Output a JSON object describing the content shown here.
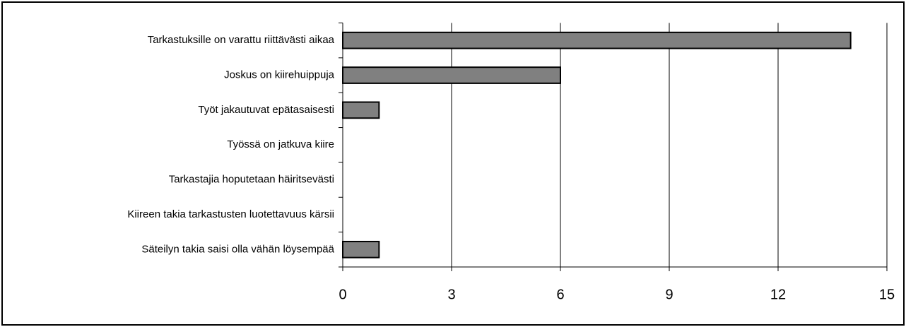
{
  "chart_data": {
    "type": "bar",
    "orientation": "horizontal",
    "categories": [
      "Tarkastuksille on varattu riittävästi aikaa",
      "Joskus on kiirehuippuja",
      "Työt jakautuvat epätasaisesti",
      "Työssä on jatkuva kiire",
      "Tarkastajia hoputetaan häiritsevästi",
      "Kiireen takia tarkastusten luotettavuus kärsii",
      "Säteilyn takia saisi olla vähän löysempää"
    ],
    "values": [
      14,
      6,
      1,
      0,
      0,
      0,
      1
    ],
    "color": "#808080",
    "xlim": [
      0,
      15
    ],
    "xticks": [
      0,
      3,
      6,
      9,
      12,
      15
    ],
    "grid": true
  }
}
